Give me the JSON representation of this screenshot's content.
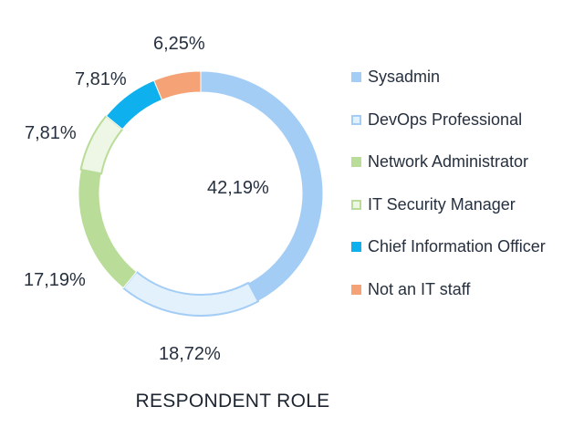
{
  "chart_data": {
    "type": "pie",
    "variant": "donut",
    "title": "RESPONDENT ROLE",
    "categories": [
      "Sysadmin",
      "DevOps Professional",
      "Network Administrator",
      "IT Security Manager",
      "Chief Information Officer",
      "Not an IT staff"
    ],
    "values": [
      42.19,
      18.72,
      17.19,
      7.81,
      7.81,
      6.25
    ],
    "value_labels": [
      "42,19%",
      "18,72%",
      "17,19%",
      "7,81%",
      "7,81%",
      "6,25%"
    ],
    "legend": "right",
    "slice_styles": [
      {
        "fill": "#a3cdf5",
        "stroke": "#a3cdf5"
      },
      {
        "fill": "#e3f1fc",
        "stroke": "#a3cdf5"
      },
      {
        "fill": "#b9dc98",
        "stroke": "#b9dc98"
      },
      {
        "fill": "#eef7e6",
        "stroke": "#b9dc98"
      },
      {
        "fill": "#0fb0ee",
        "stroke": "#0fb0ee"
      },
      {
        "fill": "#f4a276",
        "stroke": "#f4a276"
      }
    ]
  }
}
